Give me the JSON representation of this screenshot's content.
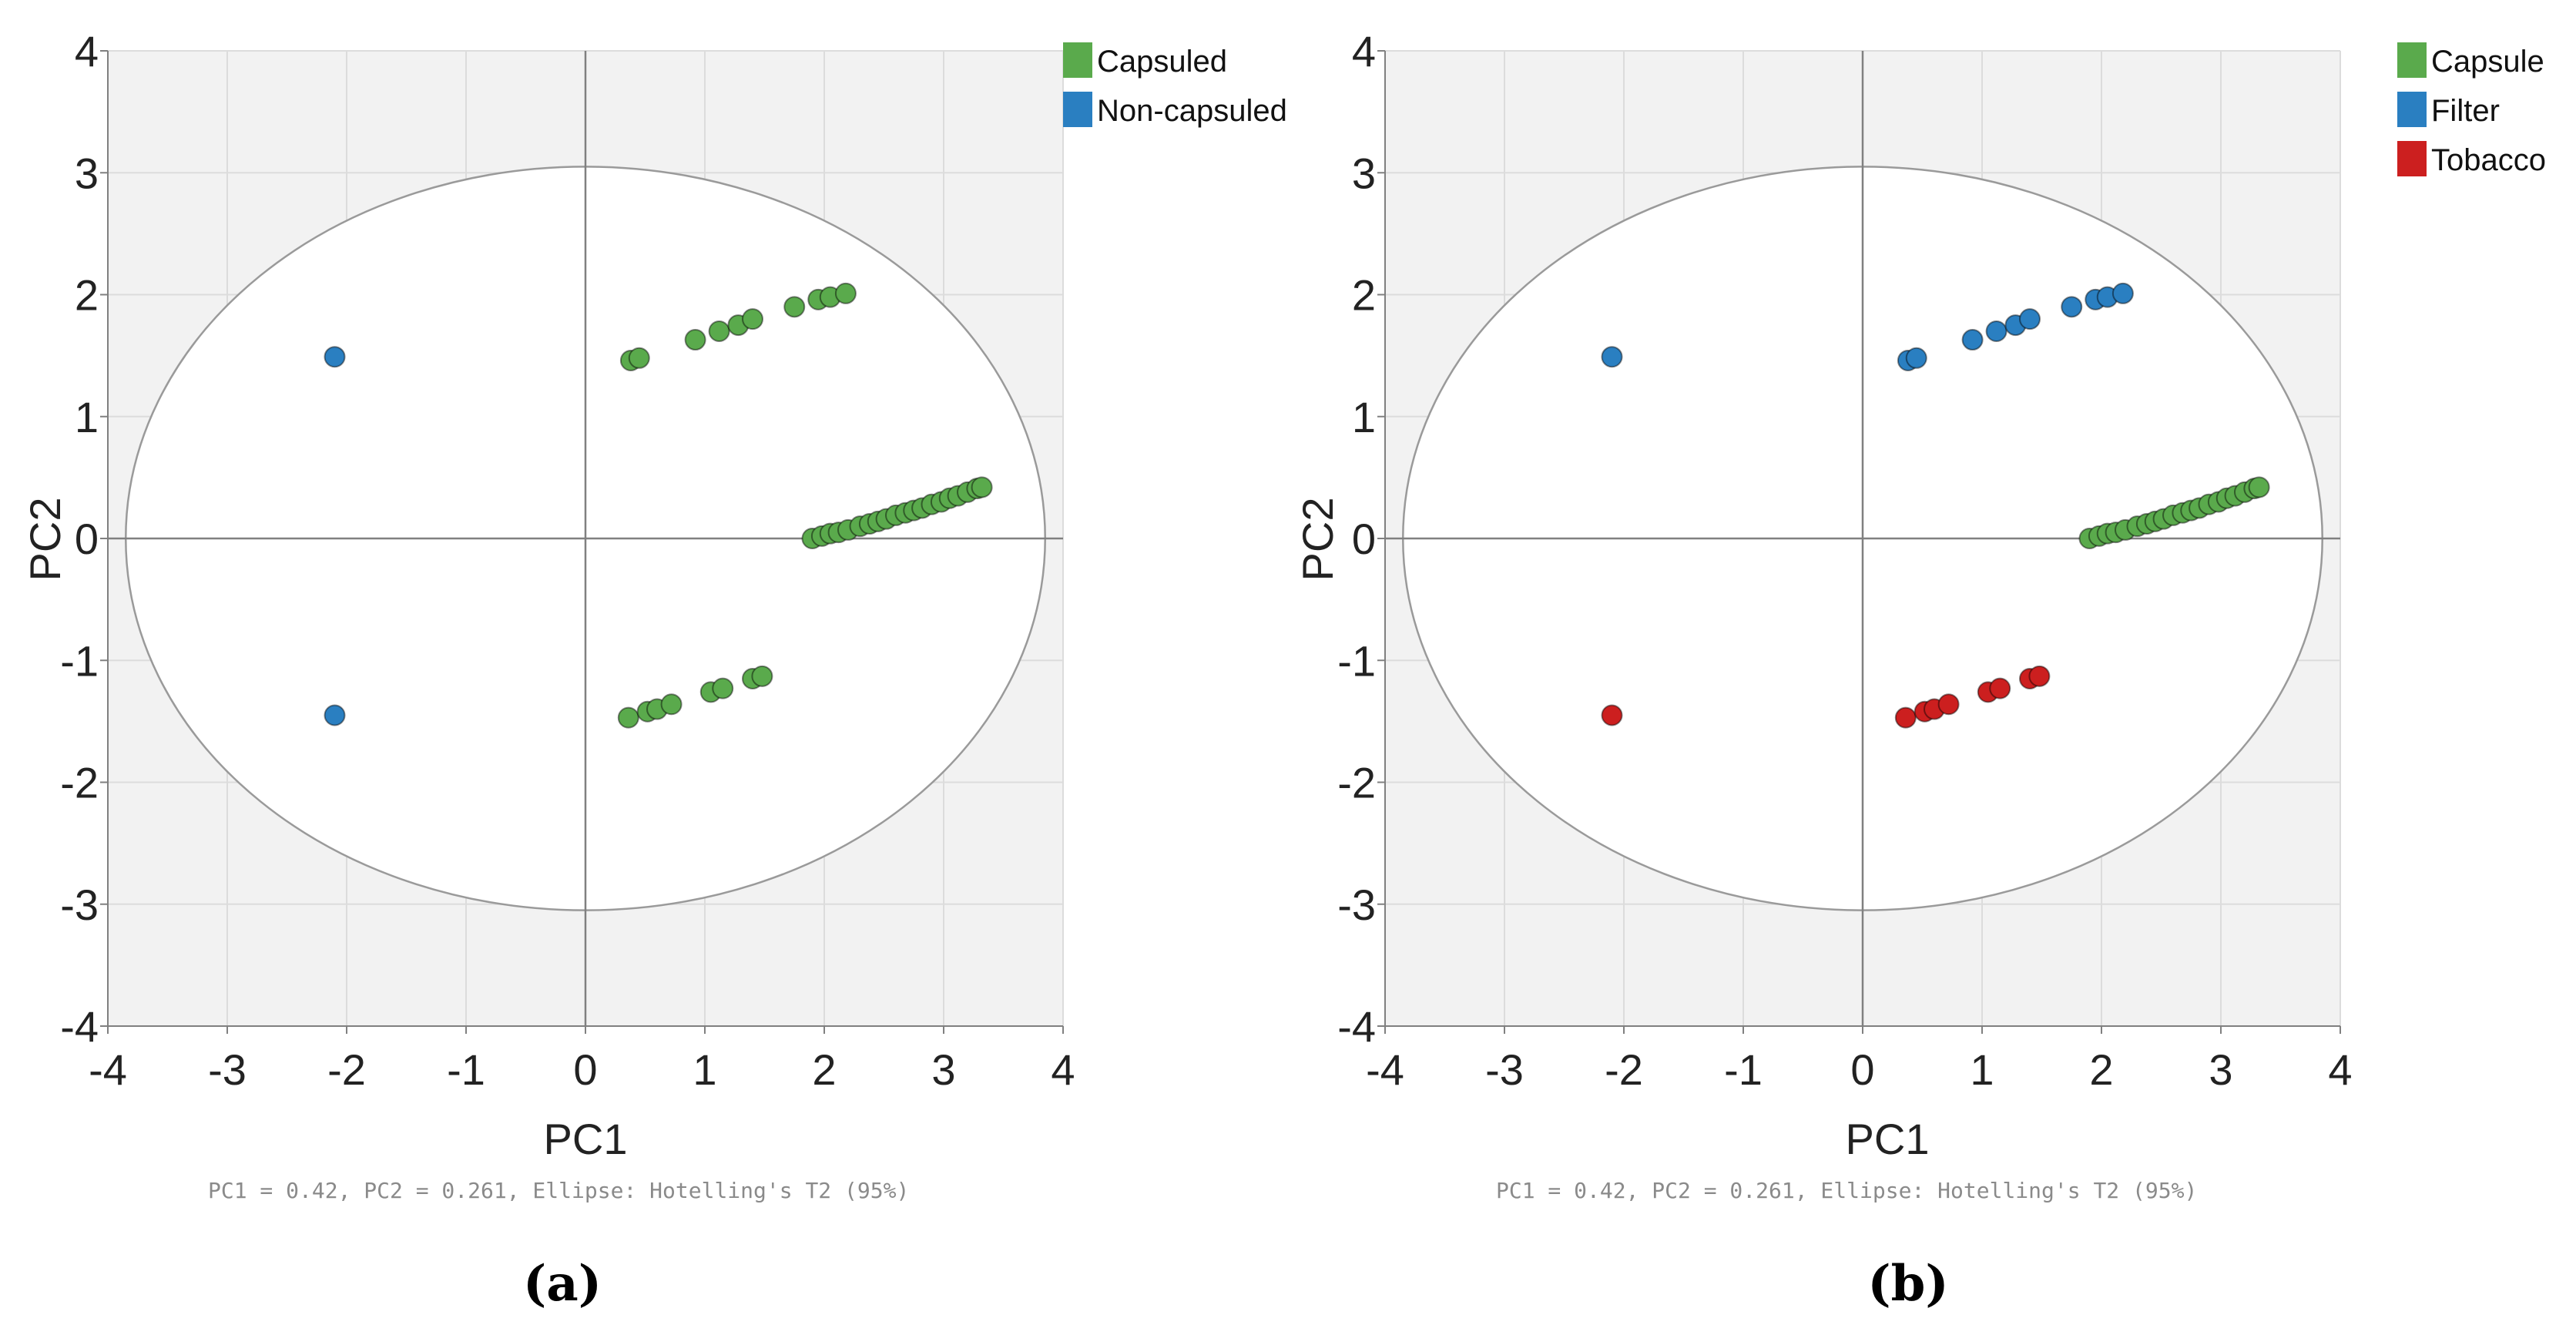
{
  "chart_data": [
    {
      "type": "scatter",
      "panel_label": "(a)",
      "xlabel": "PC1",
      "ylabel": "PC2",
      "xlim": [
        -4,
        4
      ],
      "ylim": [
        -4,
        4
      ],
      "xticks": [
        -4,
        -3,
        -2,
        -1,
        0,
        1,
        2,
        3,
        4
      ],
      "yticks": [
        -4,
        -3,
        -2,
        -1,
        0,
        1,
        2,
        3,
        4
      ],
      "grid": true,
      "legend_position": "top-right",
      "ellipse": {
        "label": "Hotelling's T2 (95%)",
        "rx": 3.85,
        "ry": 3.05
      },
      "footnote": "PC1 = 0.42, PC2 = 0.261, Ellipse: Hotelling's T2 (95%)",
      "series": [
        {
          "name": "Capsuled",
          "color": "#5aaa4c",
          "points": [
            [
              0.38,
              1.46
            ],
            [
              0.45,
              1.48
            ],
            [
              0.92,
              1.63
            ],
            [
              1.12,
              1.7
            ],
            [
              1.28,
              1.75
            ],
            [
              1.4,
              1.8
            ],
            [
              1.75,
              1.9
            ],
            [
              1.95,
              1.96
            ],
            [
              2.05,
              1.98
            ],
            [
              2.18,
              2.01
            ],
            [
              0.36,
              -1.47
            ],
            [
              0.52,
              -1.42
            ],
            [
              0.6,
              -1.4
            ],
            [
              0.72,
              -1.36
            ],
            [
              1.05,
              -1.26
            ],
            [
              1.15,
              -1.23
            ],
            [
              1.4,
              -1.15
            ],
            [
              1.48,
              -1.13
            ],
            [
              1.9,
              0.0
            ],
            [
              1.98,
              0.02
            ],
            [
              2.05,
              0.04
            ],
            [
              2.12,
              0.05
            ],
            [
              2.2,
              0.07
            ],
            [
              2.3,
              0.1
            ],
            [
              2.38,
              0.12
            ],
            [
              2.45,
              0.14
            ],
            [
              2.52,
              0.16
            ],
            [
              2.6,
              0.19
            ],
            [
              2.68,
              0.21
            ],
            [
              2.75,
              0.23
            ],
            [
              2.82,
              0.25
            ],
            [
              2.9,
              0.28
            ],
            [
              2.98,
              0.3
            ],
            [
              3.05,
              0.33
            ],
            [
              3.12,
              0.35
            ],
            [
              3.2,
              0.38
            ],
            [
              3.28,
              0.41
            ],
            [
              3.32,
              0.42
            ]
          ]
        },
        {
          "name": "Non-capsuled",
          "color": "#2a7fc1",
          "points": [
            [
              -2.1,
              1.49
            ],
            [
              -2.1,
              -1.45
            ]
          ]
        }
      ]
    },
    {
      "type": "scatter",
      "panel_label": "(b)",
      "xlabel": "PC1",
      "ylabel": "PC2",
      "xlim": [
        -4,
        4
      ],
      "ylim": [
        -4,
        4
      ],
      "xticks": [
        -4,
        -3,
        -2,
        -1,
        0,
        1,
        2,
        3,
        4
      ],
      "yticks": [
        -4,
        -3,
        -2,
        -1,
        0,
        1,
        2,
        3,
        4
      ],
      "grid": true,
      "legend_position": "top-right",
      "ellipse": {
        "label": "Hotelling's T2 (95%)",
        "rx": 3.85,
        "ry": 3.05
      },
      "footnote": "PC1 = 0.42, PC2 = 0.261, Ellipse: Hotelling's T2 (95%)",
      "series": [
        {
          "name": "Capsule",
          "color": "#5aaa4c",
          "points": [
            [
              1.9,
              0.0
            ],
            [
              1.98,
              0.02
            ],
            [
              2.05,
              0.04
            ],
            [
              2.12,
              0.05
            ],
            [
              2.2,
              0.07
            ],
            [
              2.3,
              0.1
            ],
            [
              2.38,
              0.12
            ],
            [
              2.45,
              0.14
            ],
            [
              2.52,
              0.16
            ],
            [
              2.6,
              0.19
            ],
            [
              2.68,
              0.21
            ],
            [
              2.75,
              0.23
            ],
            [
              2.82,
              0.25
            ],
            [
              2.9,
              0.28
            ],
            [
              2.98,
              0.3
            ],
            [
              3.05,
              0.33
            ],
            [
              3.12,
              0.35
            ],
            [
              3.2,
              0.38
            ],
            [
              3.28,
              0.41
            ],
            [
              3.32,
              0.42
            ]
          ]
        },
        {
          "name": "Filter",
          "color": "#2a7fc1",
          "points": [
            [
              -2.1,
              1.49
            ],
            [
              0.38,
              1.46
            ],
            [
              0.45,
              1.48
            ],
            [
              0.92,
              1.63
            ],
            [
              1.12,
              1.7
            ],
            [
              1.28,
              1.75
            ],
            [
              1.4,
              1.8
            ],
            [
              1.75,
              1.9
            ],
            [
              1.95,
              1.96
            ],
            [
              2.05,
              1.98
            ],
            [
              2.18,
              2.01
            ]
          ]
        },
        {
          "name": "Tobacco",
          "color": "#cc1f1f",
          "points": [
            [
              -2.1,
              -1.45
            ],
            [
              0.36,
              -1.47
            ],
            [
              0.52,
              -1.42
            ],
            [
              0.6,
              -1.4
            ],
            [
              0.72,
              -1.36
            ],
            [
              1.05,
              -1.26
            ],
            [
              1.15,
              -1.23
            ],
            [
              1.4,
              -1.15
            ],
            [
              1.48,
              -1.13
            ]
          ]
        }
      ]
    }
  ]
}
